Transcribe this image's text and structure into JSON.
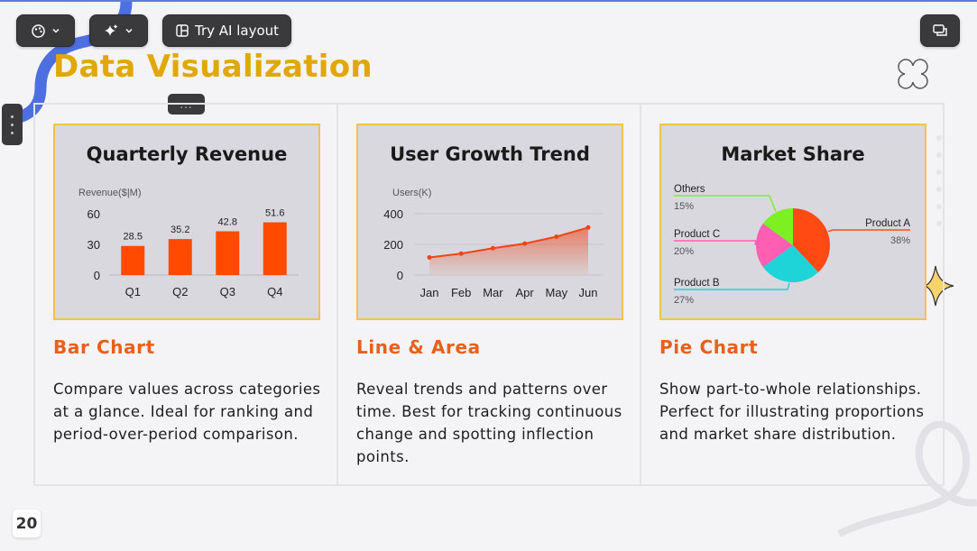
{
  "toolbar": {
    "theme_icon": "palette-icon",
    "ai_icon": "sparkles-icon",
    "dropdown_icon": "chevron-down-icon",
    "try_ai_label": "Try AI layout",
    "layout_icon": "layout-icon",
    "comment_icon": "chat-icon"
  },
  "side_handle_icon": "drag-handle-icon",
  "more_handle_label": "...",
  "page": {
    "title": "Data Visualization",
    "number": "20"
  },
  "colors": {
    "title": "#e0a800",
    "heading": "#e8601c",
    "bar": "#ff4a00",
    "line": "#f04418",
    "card_border": "#f2c14e",
    "card_bg": "#d8d8de"
  },
  "columns": [
    {
      "heading": "Bar Chart",
      "description": "Compare values across categories at a glance. Ideal for ranking and period-over-period comparison."
    },
    {
      "heading": "Line & Area",
      "description": "Reveal trends and patterns over time. Best for tracking continuous change and spotting inflection points."
    },
    {
      "heading": "Pie Chart",
      "description": "Show part-to-whole relationships. Perfect for illustrating proportions and market share distribution."
    }
  ],
  "chart_data": [
    {
      "type": "bar",
      "title": "Quarterly Revenue",
      "ylabel": "Revenue($|M)",
      "categories": [
        "Q1",
        "Q2",
        "Q3",
        "Q4"
      ],
      "values": [
        28.5,
        35.2,
        42.8,
        51.6
      ],
      "yticks": [
        0,
        30,
        60
      ],
      "ylim": [
        0,
        60
      ],
      "grid": false
    },
    {
      "type": "area",
      "title": "User Growth Trend",
      "ylabel": "Users(K)",
      "categories": [
        "Jan",
        "Feb",
        "Mar",
        "Apr",
        "May",
        "Jun"
      ],
      "values": [
        115,
        140,
        175,
        205,
        250,
        310
      ],
      "yticks": [
        0,
        200,
        400
      ],
      "ylim": [
        0,
        400
      ],
      "grid": true
    },
    {
      "type": "pie",
      "title": "Market Share",
      "slices": [
        {
          "name": "Product A",
          "value": 38,
          "label": "38%",
          "color": "#ff4a14"
        },
        {
          "name": "Product B",
          "value": 27,
          "label": "27%",
          "color": "#1ed4d8"
        },
        {
          "name": "Product C",
          "value": 20,
          "label": "20%",
          "color": "#ff5fb3"
        },
        {
          "name": "Others",
          "value": 15,
          "label": "15%",
          "color": "#7df021"
        }
      ]
    }
  ]
}
